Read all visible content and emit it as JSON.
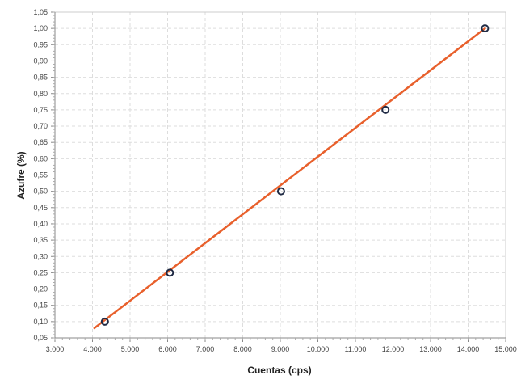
{
  "chart_data": {
    "type": "scatter",
    "title": "",
    "xlabel": "Cuentas (cps)",
    "ylabel": "Azufre (%)",
    "xlim": [
      3000,
      15000
    ],
    "ylim": [
      0.05,
      1.05
    ],
    "x_ticks": [
      "3.000",
      "4.000",
      "5.000",
      "6.000",
      "7.000",
      "8.000",
      "9.000",
      "10.000",
      "11.000",
      "12.000",
      "13.000",
      "14.000",
      "15.000"
    ],
    "y_ticks": [
      "0,05",
      "0,10",
      "0,15",
      "0,20",
      "0,25",
      "0,30",
      "0,35",
      "0,40",
      "0,45",
      "0,50",
      "0,55",
      "0,60",
      "0,65",
      "0,70",
      "0,75",
      "0,80",
      "0,85",
      "0,90",
      "0,95",
      "1,00",
      "1,05"
    ],
    "grid": true,
    "series": [
      {
        "type": "scatter",
        "x": [
          4330,
          6060,
          9020,
          11800,
          14450
        ],
        "y": [
          0.1,
          0.25,
          0.5,
          0.75,
          1.0
        ]
      },
      {
        "type": "line",
        "x": [
          4050,
          14450
        ],
        "y": [
          0.08,
          1.0
        ]
      }
    ],
    "colors": {
      "fit_line": "#e8602c",
      "marker_edge": "#1f2a44",
      "grid": "#dddddd"
    }
  }
}
